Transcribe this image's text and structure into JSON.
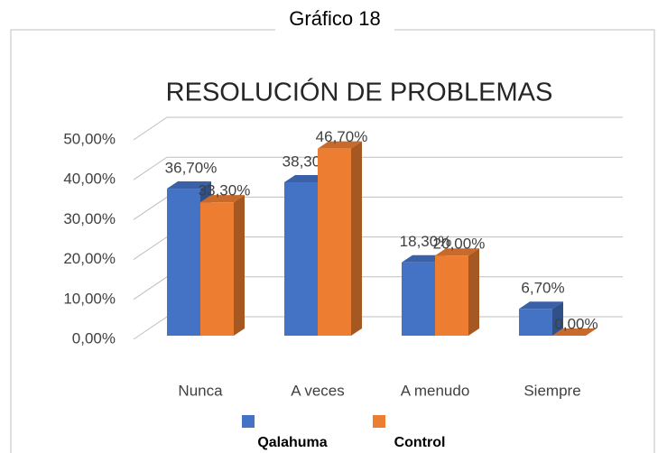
{
  "chart_data": {
    "type": "bar3d",
    "caption": "Gráfico 18",
    "title": "RESOLUCIÓN DE PROBLEMAS",
    "categories": [
      "Nunca",
      "A veces",
      "A menudo",
      "Siempre"
    ],
    "series": [
      {
        "name": "Qalahuma",
        "color": "#4472c4",
        "values": [
          36.7,
          38.3,
          18.3,
          6.7
        ],
        "value_labels": [
          "36,70%",
          "38,30%",
          "18,30%",
          "6,70%"
        ]
      },
      {
        "name": "Control",
        "color": "#ed7d31",
        "values": [
          33.3,
          46.7,
          20.0,
          0.0
        ],
        "value_labels": [
          "33,30%",
          "46,70%",
          "20,00%",
          "0,00%"
        ]
      }
    ],
    "ylim": [
      0,
      50
    ],
    "yticks": [
      {
        "value": 0,
        "label": "0,00%"
      },
      {
        "value": 10,
        "label": "10,00%"
      },
      {
        "value": 20,
        "label": "20,00%"
      },
      {
        "value": 30,
        "label": "30,00%"
      },
      {
        "value": 40,
        "label": "40,00%"
      },
      {
        "value": 50,
        "label": "50,00%"
      }
    ],
    "grid": true,
    "legend": "bottom"
  }
}
